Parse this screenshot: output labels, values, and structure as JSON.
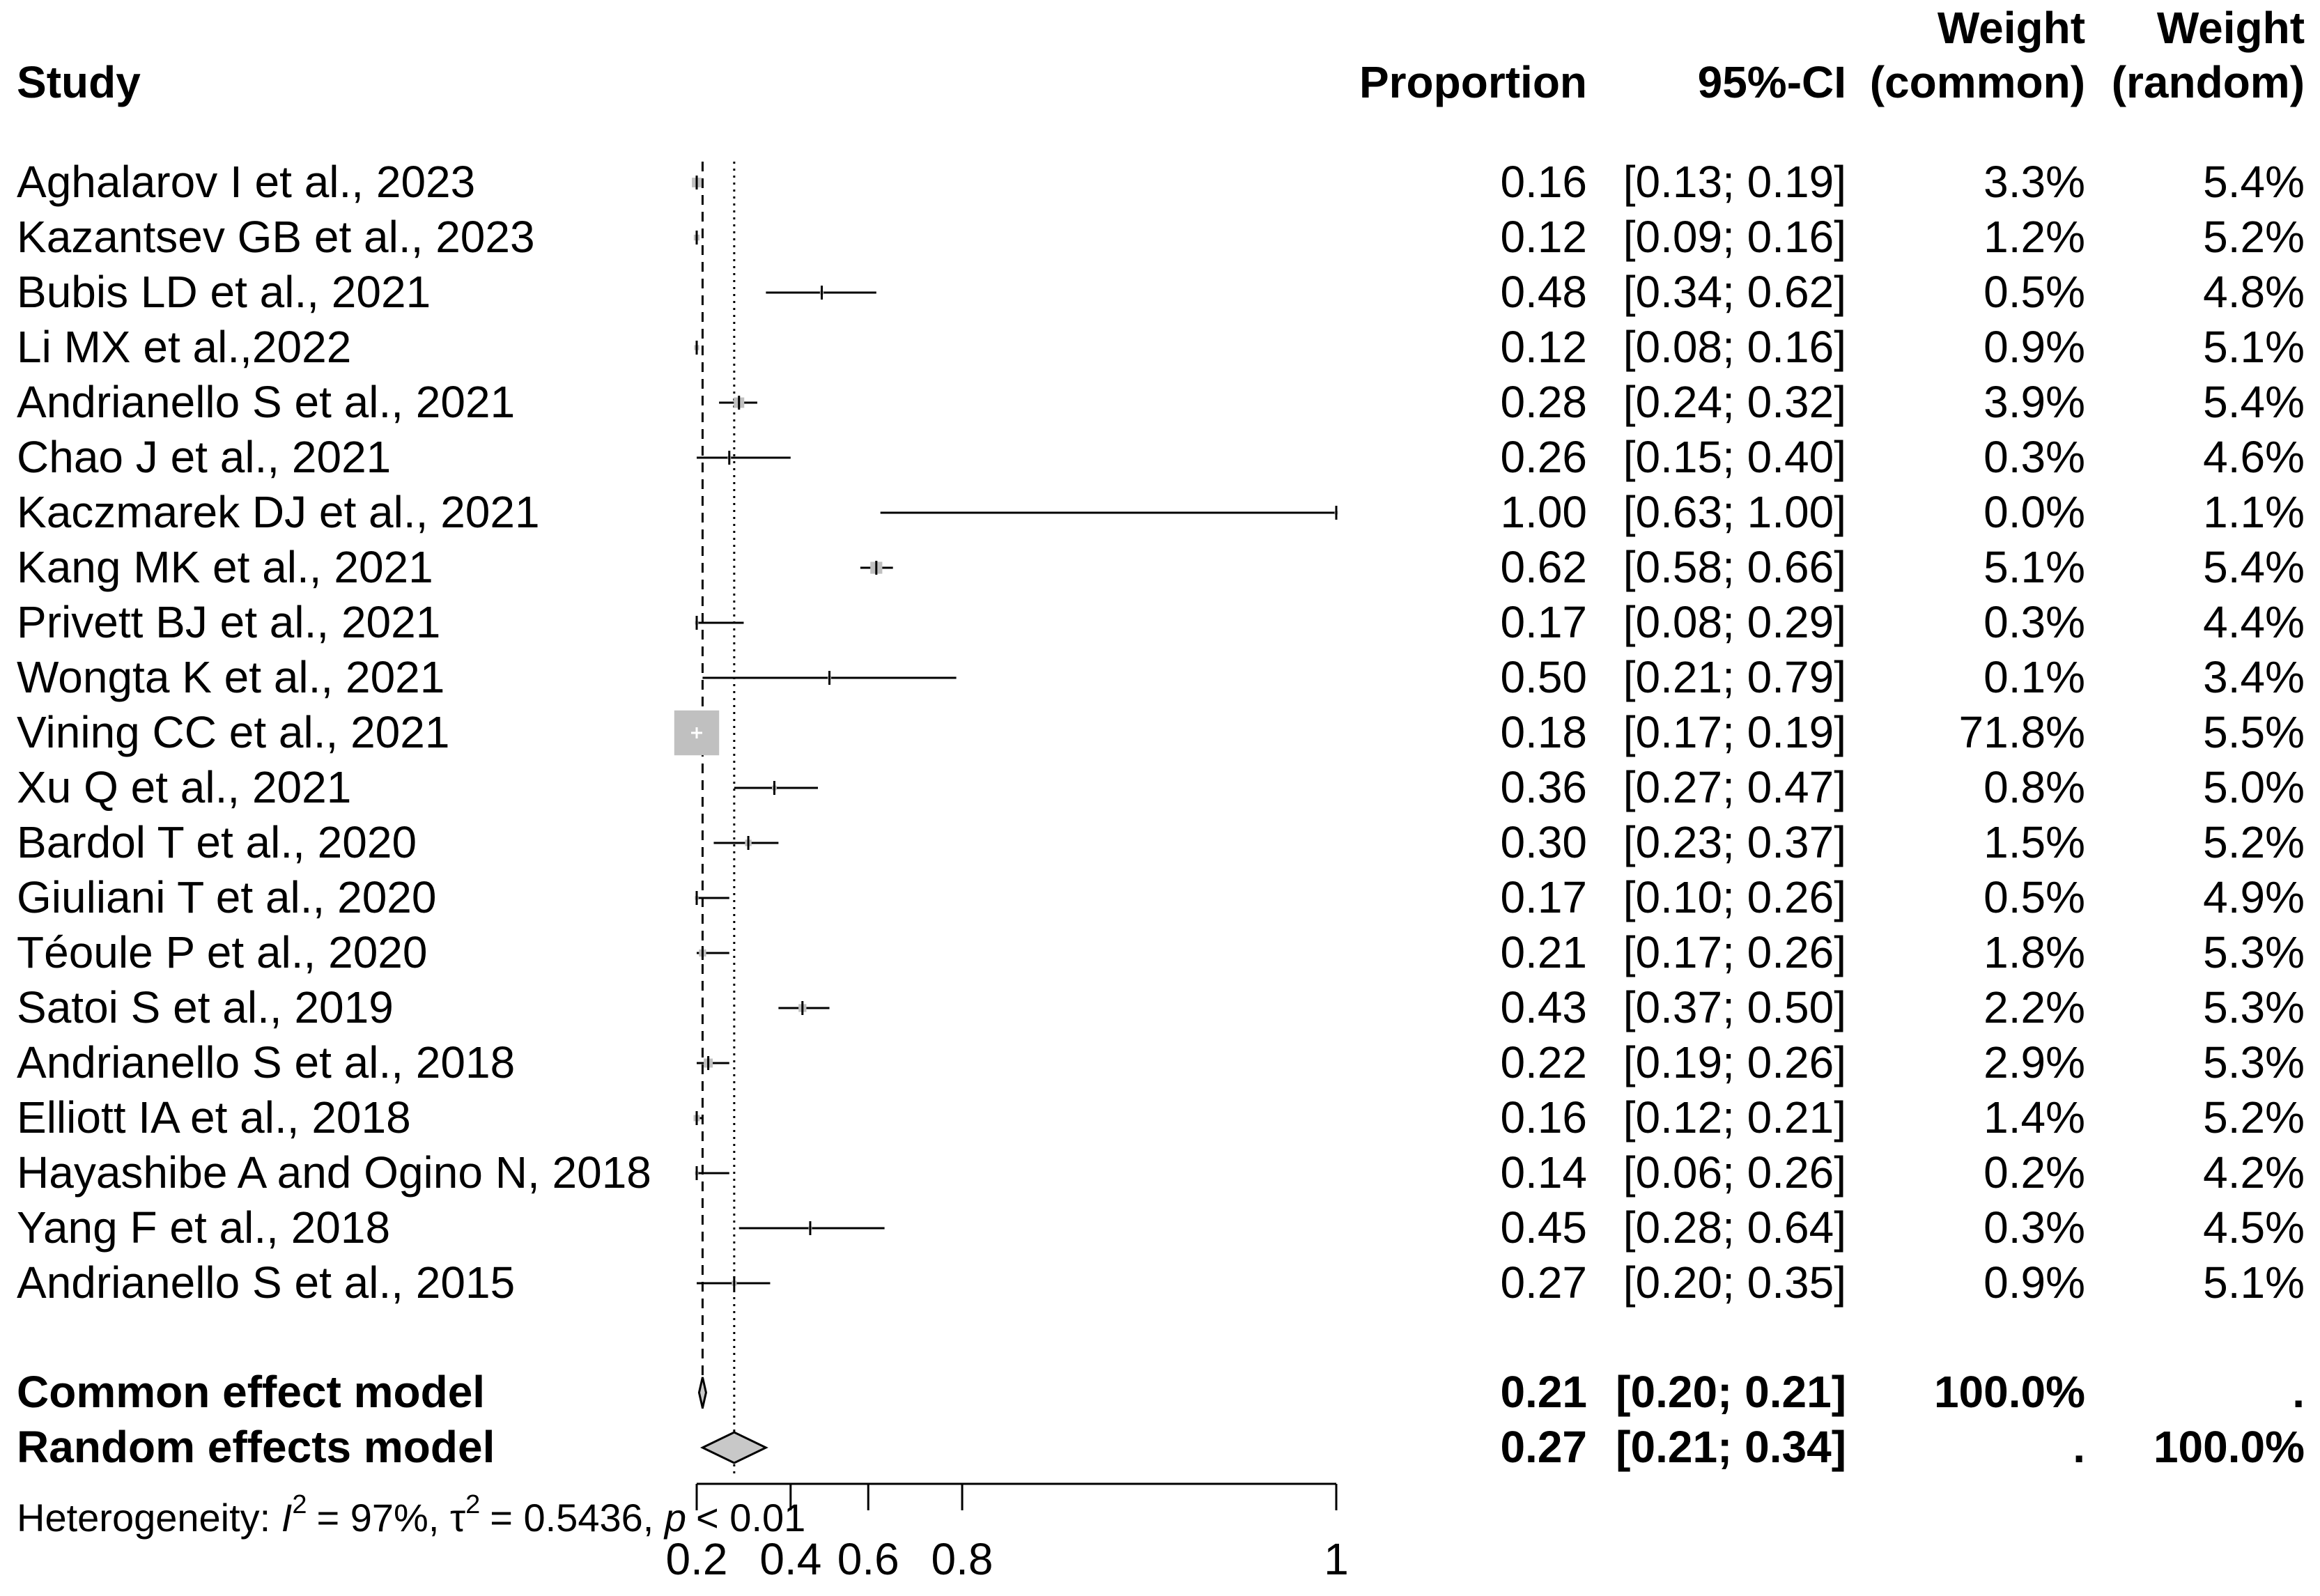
{
  "chart_data": {
    "type": "forest",
    "headers": {
      "study": "Study",
      "proportion": "Proportion",
      "ci": "95%-CI",
      "weight_common": [
        "Weight",
        "(common)"
      ],
      "weight_random": [
        "Weight",
        "(random)"
      ]
    },
    "studies": [
      {
        "name": "Aghalarov I et al., 2023",
        "prop": 0.16,
        "lo": 0.13,
        "hi": 0.19,
        "prop_text": "0.16",
        "ci_text": "[0.13; 0.19]",
        "w_common": "3.3%",
        "w_random": "5.4%",
        "wc": 3.3
      },
      {
        "name": "Kazantsev GB et al., 2023",
        "prop": 0.12,
        "lo": 0.09,
        "hi": 0.16,
        "prop_text": "0.12",
        "ci_text": "[0.09; 0.16]",
        "w_common": "1.2%",
        "w_random": "5.2%",
        "wc": 1.2
      },
      {
        "name": "Bubis LD et al., 2021",
        "prop": 0.48,
        "lo": 0.34,
        "hi": 0.62,
        "prop_text": "0.48",
        "ci_text": "[0.34; 0.62]",
        "w_common": "0.5%",
        "w_random": "4.8%",
        "wc": 0.5
      },
      {
        "name": "Li MX et al.,2022",
        "prop": 0.12,
        "lo": 0.08,
        "hi": 0.16,
        "prop_text": "0.12",
        "ci_text": "[0.08; 0.16]",
        "w_common": "0.9%",
        "w_random": "5.1%",
        "wc": 0.9
      },
      {
        "name": "Andrianello S et al., 2021",
        "prop": 0.28,
        "lo": 0.24,
        "hi": 0.32,
        "prop_text": "0.28",
        "ci_text": "[0.24; 0.32]",
        "w_common": "3.9%",
        "w_random": "5.4%",
        "wc": 3.9
      },
      {
        "name": "Chao J et al., 2021",
        "prop": 0.26,
        "lo": 0.15,
        "hi": 0.4,
        "prop_text": "0.26",
        "ci_text": "[0.15; 0.40]",
        "w_common": "0.3%",
        "w_random": "4.6%",
        "wc": 0.3
      },
      {
        "name": "Kaczmarek DJ et al., 2021",
        "prop": 1.0,
        "lo": 0.63,
        "hi": 1.0,
        "prop_text": "1.00",
        "ci_text": "[0.63; 1.00]",
        "w_common": "0.0%",
        "w_random": "1.1%",
        "wc": 0.0
      },
      {
        "name": "Kang MK et al., 2021",
        "prop": 0.62,
        "lo": 0.58,
        "hi": 0.66,
        "prop_text": "0.62",
        "ci_text": "[0.58; 0.66]",
        "w_common": "5.1%",
        "w_random": "5.4%",
        "wc": 5.1
      },
      {
        "name": "Privett BJ et al., 2021",
        "prop": 0.17,
        "lo": 0.08,
        "hi": 0.29,
        "prop_text": "0.17",
        "ci_text": "[0.08; 0.29]",
        "w_common": "0.3%",
        "w_random": "4.4%",
        "wc": 0.3
      },
      {
        "name": "Wongta K et al., 2021",
        "prop": 0.5,
        "lo": 0.21,
        "hi": 0.79,
        "prop_text": "0.50",
        "ci_text": "[0.21; 0.79]",
        "w_common": "0.1%",
        "w_random": "3.4%",
        "wc": 0.1
      },
      {
        "name": "Vining CC et al., 2021",
        "prop": 0.18,
        "lo": 0.17,
        "hi": 0.19,
        "prop_text": "0.18",
        "ci_text": "[0.17; 0.19]",
        "w_common": "71.8%",
        "w_random": "5.5%",
        "wc": 71.8
      },
      {
        "name": "Xu Q et al., 2021",
        "prop": 0.36,
        "lo": 0.27,
        "hi": 0.47,
        "prop_text": "0.36",
        "ci_text": "[0.27; 0.47]",
        "w_common": "0.8%",
        "w_random": "5.0%",
        "wc": 0.8
      },
      {
        "name": "Bardol T et al., 2020",
        "prop": 0.3,
        "lo": 0.23,
        "hi": 0.37,
        "prop_text": "0.30",
        "ci_text": "[0.23; 0.37]",
        "w_common": "1.5%",
        "w_random": "5.2%",
        "wc": 1.5
      },
      {
        "name": "Giuliani T et al., 2020",
        "prop": 0.17,
        "lo": 0.1,
        "hi": 0.26,
        "prop_text": "0.17",
        "ci_text": "[0.10; 0.26]",
        "w_common": "0.5%",
        "w_random": "4.9%",
        "wc": 0.5
      },
      {
        "name": "Téoule P et al., 2020",
        "prop": 0.21,
        "lo": 0.17,
        "hi": 0.26,
        "prop_text": "0.21",
        "ci_text": "[0.17; 0.26]",
        "w_common": "1.8%",
        "w_random": "5.3%",
        "wc": 1.8
      },
      {
        "name": "Satoi S et al., 2019",
        "prop": 0.43,
        "lo": 0.37,
        "hi": 0.5,
        "prop_text": "0.43",
        "ci_text": "[0.37; 0.50]",
        "w_common": "2.2%",
        "w_random": "5.3%",
        "wc": 2.2
      },
      {
        "name": "Andrianello S et al., 2018",
        "prop": 0.22,
        "lo": 0.19,
        "hi": 0.26,
        "prop_text": "0.22",
        "ci_text": "[0.19; 0.26]",
        "w_common": "2.9%",
        "w_random": "5.3%",
        "wc": 2.9
      },
      {
        "name": "Elliott IA et al., 2018",
        "prop": 0.16,
        "lo": 0.12,
        "hi": 0.21,
        "prop_text": "0.16",
        "ci_text": "[0.12; 0.21]",
        "w_common": "1.4%",
        "w_random": "5.2%",
        "wc": 1.4
      },
      {
        "name": "Hayashibe A and Ogino N, 2018",
        "prop": 0.14,
        "lo": 0.06,
        "hi": 0.26,
        "prop_text": "0.14",
        "ci_text": "[0.06; 0.26]",
        "w_common": "0.2%",
        "w_random": "4.2%",
        "wc": 0.2
      },
      {
        "name": "Yang F et al., 2018",
        "prop": 0.45,
        "lo": 0.28,
        "hi": 0.64,
        "prop_text": "0.45",
        "ci_text": "[0.28; 0.64]",
        "w_common": "0.3%",
        "w_random": "4.5%",
        "wc": 0.3
      },
      {
        "name": "Andrianello S et al., 2015",
        "prop": 0.27,
        "lo": 0.2,
        "hi": 0.35,
        "prop_text": "0.27",
        "ci_text": "[0.20; 0.35]",
        "w_common": "0.9%",
        "w_random": "5.1%",
        "wc": 0.9
      }
    ],
    "models": [
      {
        "name": "Common effect model",
        "est": 0.21,
        "lo": 0.2,
        "hi": 0.21,
        "prop_text": "0.21",
        "ci_text": "[0.20; 0.21]",
        "w_common": "100.0%",
        "w_random": "."
      },
      {
        "name": "Random effects model",
        "est": 0.27,
        "lo": 0.21,
        "hi": 0.34,
        "prop_text": "0.27",
        "ci_text": "[0.21; 0.34]",
        "w_common": ".",
        "w_random": "100.0%"
      }
    ],
    "heterogeneity": {
      "prefix": "Heterogeneity: ",
      "i2": "= 97%, ",
      "tau2": "= 0.5436, ",
      "p": "< 0.01"
    },
    "x_axis": {
      "ticks": [
        0.2,
        0.4,
        0.6,
        0.8,
        1
      ],
      "tick_labels": [
        "0.2",
        "0.4",
        "0.6",
        "0.8",
        "1"
      ],
      "range": [
        0.2,
        1.0
      ],
      "scale": "logit"
    },
    "colors": {
      "box": "#c0c0c0",
      "diamond": "#c8c8c8"
    }
  }
}
